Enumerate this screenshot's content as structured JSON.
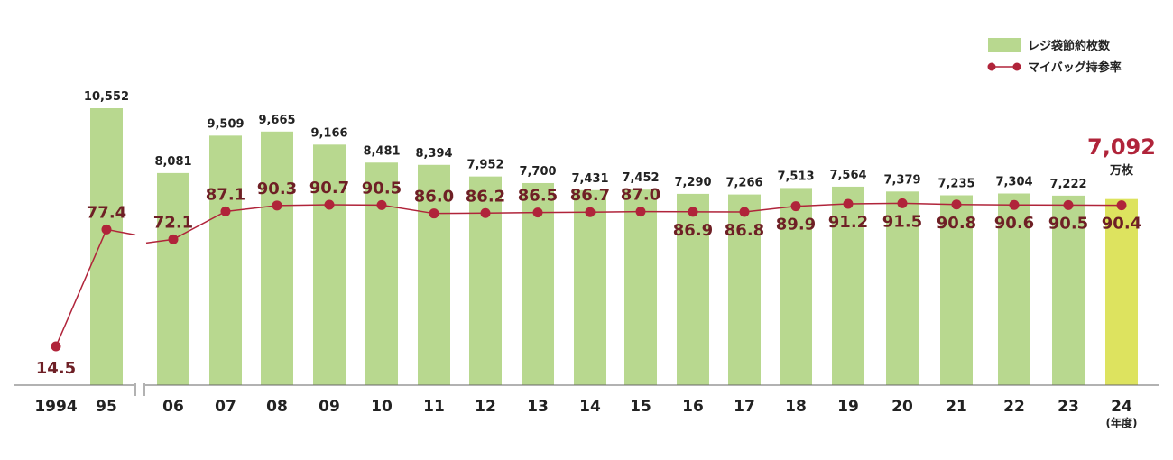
{
  "chart_data": {
    "type": "bar",
    "categories": [
      "1994",
      "95",
      "06",
      "07",
      "08",
      "09",
      "10",
      "11",
      "12",
      "13",
      "14",
      "15",
      "16",
      "17",
      "18",
      "19",
      "20",
      "21",
      "22",
      "23",
      "24"
    ],
    "x_unit": "(年度)",
    "series": [
      {
        "name": "レジ袋節約枚数",
        "type": "bar",
        "values": [
          null,
          10552,
          8081,
          9509,
          9665,
          9166,
          8481,
          8394,
          7952,
          7700,
          7431,
          7452,
          7290,
          7266,
          7513,
          7564,
          7379,
          7235,
          7304,
          7222,
          7092
        ],
        "labels": [
          "",
          "10,552",
          "8,081",
          "9,509",
          "9,665",
          "9,166",
          "8,481",
          "8,394",
          "7,952",
          "7,700",
          "7,431",
          "7,452",
          "7,290",
          "7,266",
          "7,513",
          "7,564",
          "7,379",
          "7,235",
          "7,304",
          "7,222",
          "7,092"
        ],
        "color": "#b8d88f",
        "highlight_color": "#dde35f",
        "highlight_index": 20
      },
      {
        "name": "マイバッグ持参率",
        "type": "line",
        "values": [
          14.5,
          77.4,
          72.1,
          87.1,
          90.3,
          90.7,
          90.5,
          86.0,
          86.2,
          86.5,
          86.7,
          87.0,
          86.9,
          86.8,
          89.9,
          91.2,
          91.5,
          90.8,
          90.6,
          90.5,
          90.4
        ],
        "labels": [
          "14.5",
          "77.4",
          "72.1",
          "87.1",
          "90.3",
          "90.7",
          "90.5",
          "86.0",
          "86.2",
          "86.5",
          "86.7",
          "87.0",
          "86.9",
          "86.8",
          "89.9",
          "91.2",
          "91.5",
          "90.8",
          "90.6",
          "90.5",
          "90.4"
        ],
        "label_side": [
          "above",
          "above",
          "above",
          "above",
          "above",
          "above",
          "above",
          "above",
          "above",
          "above",
          "above",
          "above",
          "below",
          "below",
          "below",
          "below",
          "below",
          "below",
          "below",
          "below",
          "below"
        ],
        "color": "#b0243a"
      }
    ],
    "latest": {
      "value": "7,092",
      "unit": "万枚"
    },
    "axis_break_after_index": 1,
    "legend_position": "top-right",
    "grid": false
  }
}
